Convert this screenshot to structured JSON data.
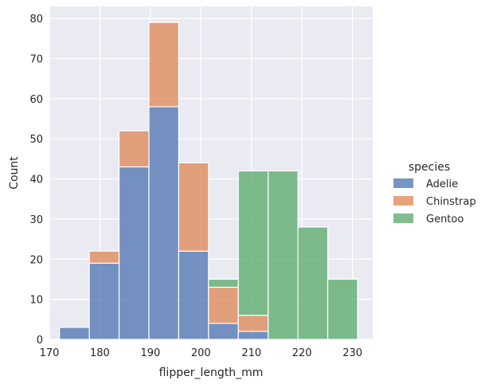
{
  "chart_data": {
    "type": "bar",
    "stacked": true,
    "xlabel": "flipper_length_mm",
    "ylabel": "Count",
    "xlim": [
      170,
      234
    ],
    "ylim": [
      0,
      83
    ],
    "xticks": [
      170,
      180,
      190,
      200,
      210,
      220,
      230
    ],
    "yticks": [
      0,
      10,
      20,
      30,
      40,
      50,
      60,
      70,
      80
    ],
    "grid": true,
    "background": "#eaeaf2",
    "legend": {
      "title": "species",
      "placement": "right"
    },
    "bin_edges": [
      172.0,
      177.9,
      183.8,
      189.7,
      195.6,
      201.5,
      207.4,
      213.3,
      219.2,
      225.1,
      231.0
    ],
    "series": [
      {
        "name": "Adelie",
        "color": "#4c72b0",
        "values": [
          3,
          19,
          43,
          58,
          22,
          4,
          2,
          0,
          0,
          0
        ]
      },
      {
        "name": "Chinstrap",
        "color": "#dd8452",
        "values": [
          0,
          3,
          9,
          21,
          22,
          9,
          4,
          0,
          0,
          0
        ]
      },
      {
        "name": "Gentoo",
        "color": "#55a868",
        "values": [
          0,
          0,
          0,
          0,
          0,
          2,
          36,
          42,
          28,
          15
        ]
      }
    ]
  }
}
